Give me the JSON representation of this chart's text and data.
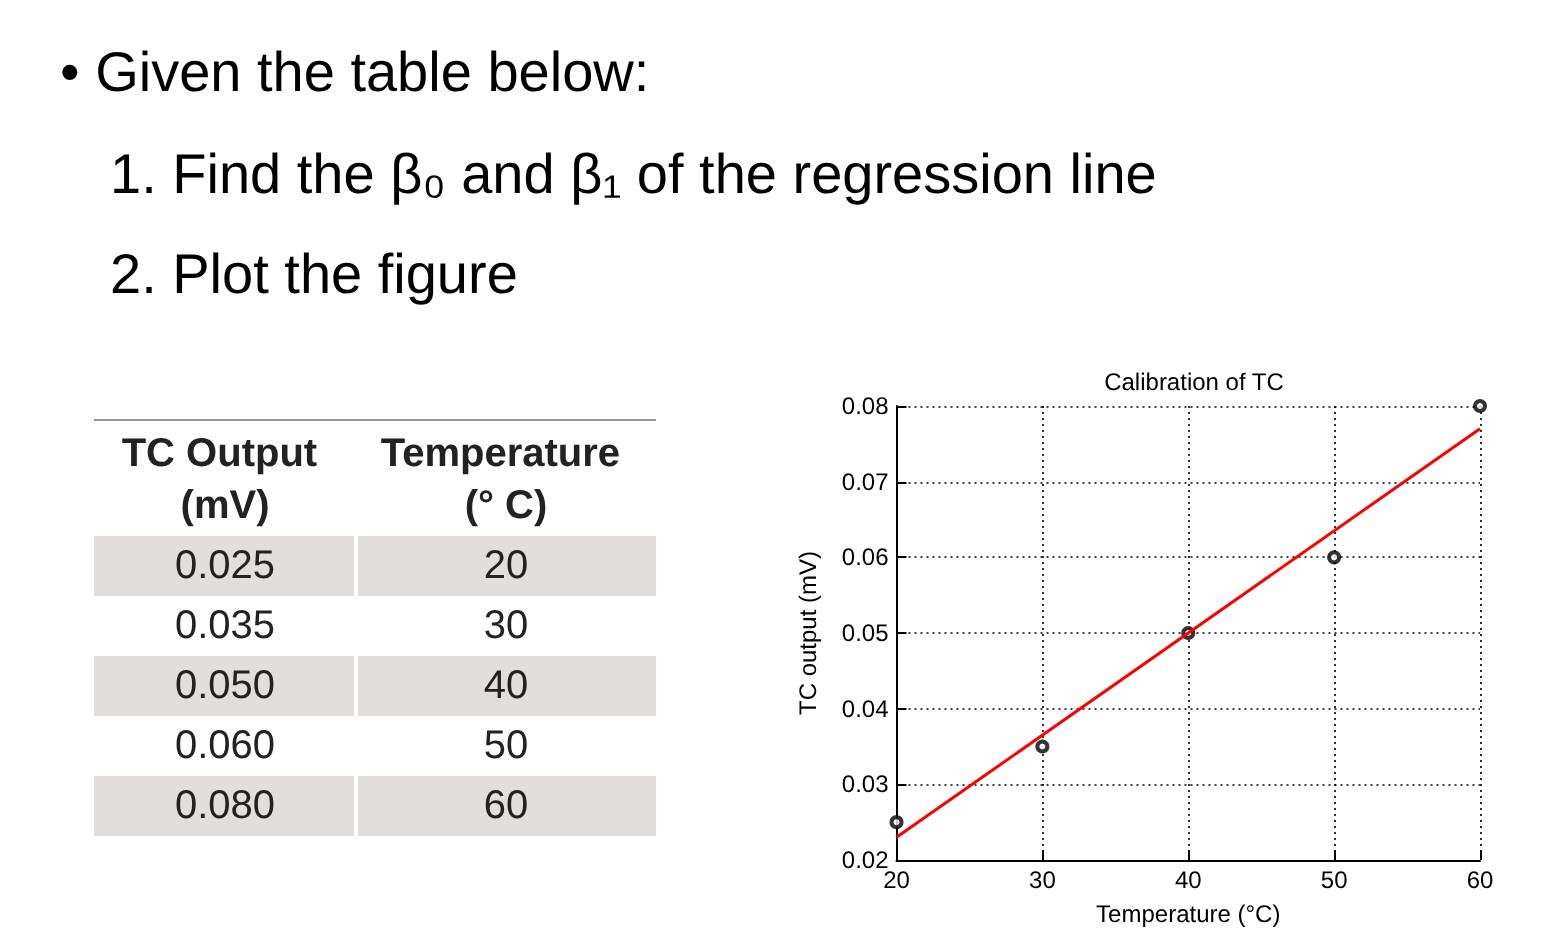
{
  "chart_data": [
    {
      "type": "other",
      "annotations": [
        "• Given the table below:",
        "1. Find the β₀ and β₁ of the regression line",
        "2. Plot the figure",
        "TC Output (mV)",
        "Temperature (° C)",
        "0.025",
        "20",
        "0.035",
        "30",
        "0.050",
        "40",
        "0.060",
        "50",
        "0.080",
        "60"
      ]
    },
    {
      "type": "scatter",
      "title": "Calibration of TC",
      "xlabel": "Temperature (°C)",
      "ylabel": "TC output (mV)",
      "x": [
        20,
        30,
        40,
        50,
        60
      ],
      "series": [
        {
          "color": "#000000",
          "marker": "circle",
          "values": [
            0.025,
            0.035,
            0.05,
            0.06,
            0.08
          ]
        },
        {
          "type": "line",
          "color": "#ff0000",
          "marker": "none",
          "x": [
            20,
            60
          ],
          "values": [
            0.023,
            0.077
          ]
        }
      ],
      "xlim": [
        20,
        60
      ],
      "xticks": [
        20,
        30,
        40,
        50,
        60
      ],
      "ylim": [
        0.02,
        0.08
      ],
      "yticks": [
        0.02,
        0.03,
        0.04,
        0.05,
        0.06,
        0.07,
        0.08
      ],
      "grid": true
    }
  ]
}
